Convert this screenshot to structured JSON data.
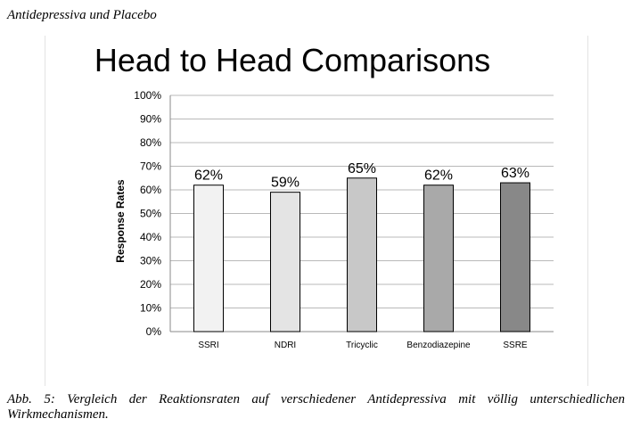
{
  "header": {
    "running_title": "Antidepressiva und Placebo"
  },
  "chart_data": {
    "type": "bar",
    "title": "Head to Head Comparisons",
    "xlabel": "",
    "ylabel": "Response  Rates",
    "categories": [
      "SSRI",
      "NDRI",
      "Tricyclic",
      "Benzodiazepine",
      "SSRE"
    ],
    "values": [
      62,
      59,
      65,
      62,
      63
    ],
    "data_labels": [
      "62%",
      "59%",
      "65%",
      "62%",
      "63%"
    ],
    "bar_colors": [
      "#f2f2f2",
      "#e4e4e4",
      "#c8c8c8",
      "#a9a9a9",
      "#888888"
    ],
    "ylim": [
      0,
      100
    ],
    "yticks": [
      0,
      10,
      20,
      30,
      40,
      50,
      60,
      70,
      80,
      90,
      100
    ],
    "ytick_labels": [
      "0%",
      "10%",
      "20%",
      "30%",
      "40%",
      "50%",
      "60%",
      "70%",
      "80%",
      "90%",
      "100%"
    ],
    "grid": true,
    "legend": "none"
  },
  "caption": {
    "text": "Abb. 5: Vergleich der Reaktionsraten auf verschiedener Antidepressiva mit völlig unterschiedlichen Wirkmechanismen."
  }
}
